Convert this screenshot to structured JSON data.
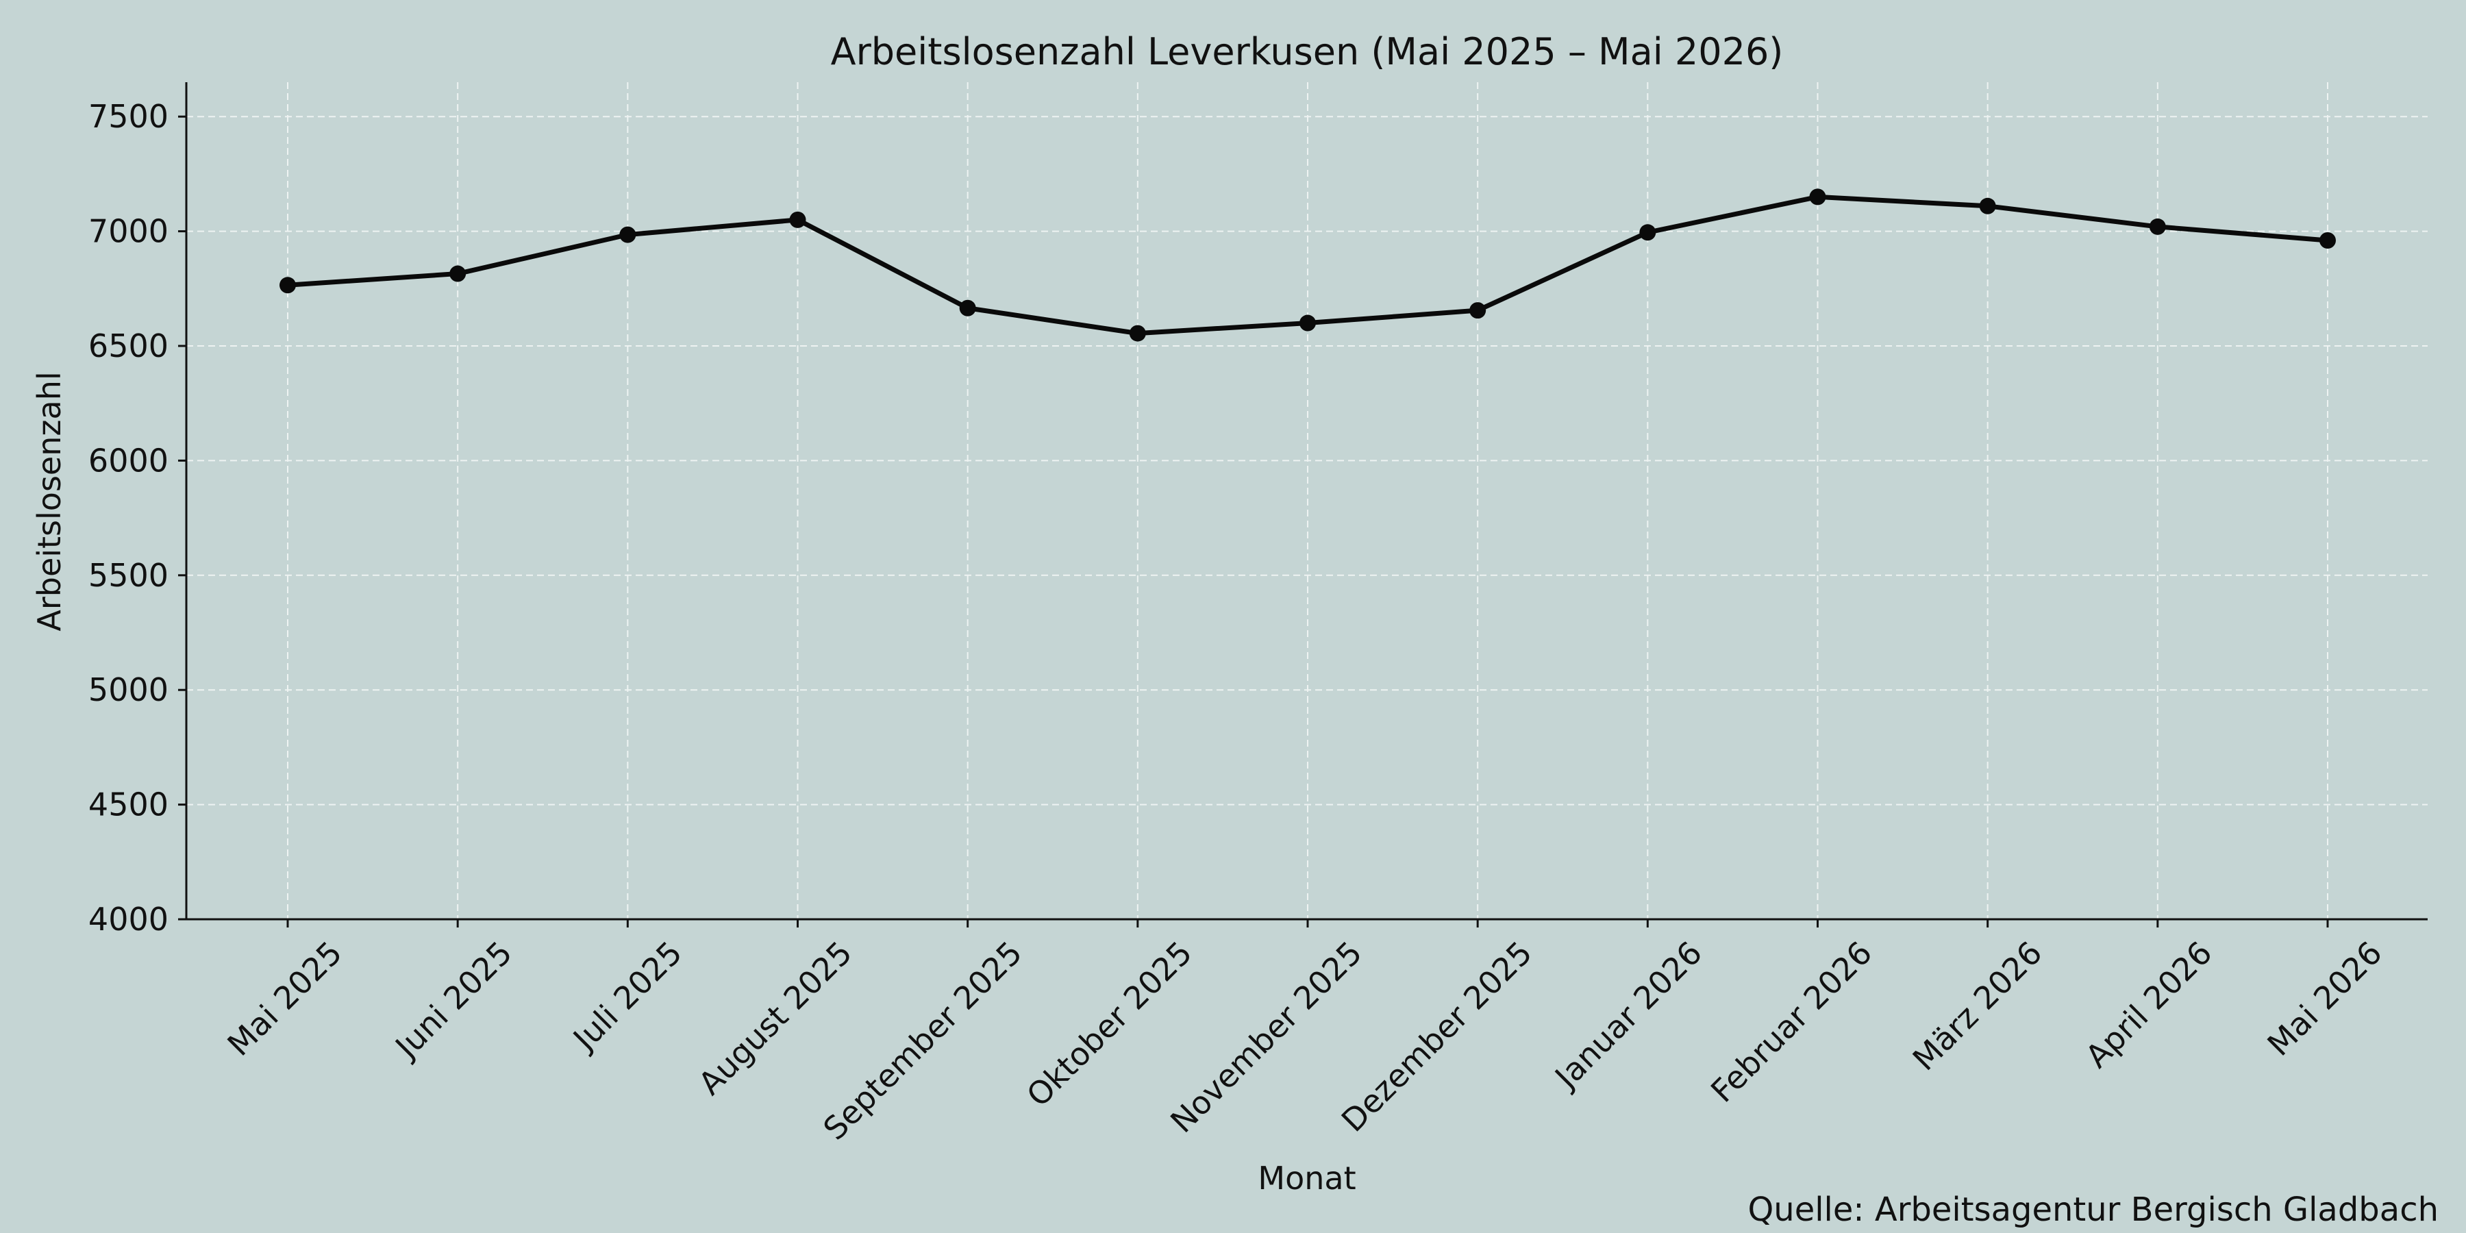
{
  "chart_data": {
    "type": "line",
    "title": "Arbeitslosenzahl Leverkusen (Mai 2025 – Mai 2026)",
    "xlabel": "Monat",
    "ylabel": "Arbeitslosenzahl",
    "source": "Quelle: Arbeitsagentur Bergisch Gladbach",
    "categories": [
      "Mai 2025",
      "Juni 2025",
      "Juli 2025",
      "August 2025",
      "September 2025",
      "Oktober 2025",
      "November 2025",
      "Dezember 2025",
      "Januar 2026",
      "Februar 2026",
      "März 2026",
      "April 2026",
      "Mai 2026"
    ],
    "series": [
      {
        "values": [
          6765,
          6815,
          6985,
          7050,
          6665,
          6555,
          6600,
          6655,
          6995,
          7150,
          7110,
          7020,
          6960
        ]
      }
    ],
    "ylim": [
      4000,
      7650
    ],
    "yticks": [
      4000,
      4500,
      5000,
      5500,
      6000,
      6500,
      7000,
      7500
    ],
    "grid": true,
    "legend": "none",
    "colors": {
      "background": "#c5d5d4",
      "line": "#0a0a0a",
      "grid": "#eef3f2"
    }
  }
}
